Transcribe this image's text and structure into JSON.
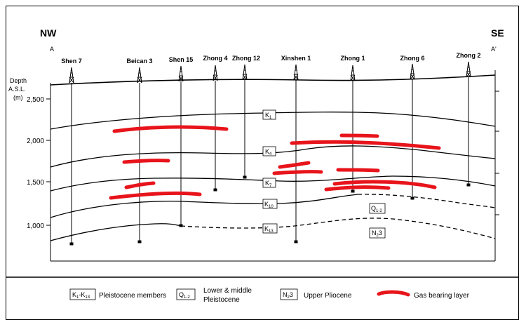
{
  "directions": {
    "left": "NW",
    "right": "SE"
  },
  "section_ends": {
    "left": "A",
    "right": "A'"
  },
  "y_axis": {
    "label_line1": "Depth",
    "label_line2": "A.S.L.",
    "label_line3": "(m)",
    "ticks": [
      "2,500",
      "2,000",
      "1,500",
      "1,000"
    ]
  },
  "wells": [
    "Shen 7",
    "Beican 3",
    "Shen 15",
    "Zhong 4",
    "Zhong 12",
    "Xinshen 1",
    "Zhong 1",
    "Zhong 6",
    "Zhong 2"
  ],
  "horizons": {
    "k1": {
      "letter": "K",
      "sub": "1"
    },
    "k4": {
      "letter": "K",
      "sub": "4"
    },
    "k7": {
      "letter": "K",
      "sub": "7"
    },
    "k10": {
      "letter": "K",
      "sub": "10"
    },
    "k13": {
      "letter": "K",
      "sub": "13"
    }
  },
  "units": {
    "q12": {
      "letter": "Q",
      "sub": "1-2"
    },
    "n23": {
      "letter": "N",
      "sub": "2",
      "suffix": "3"
    }
  },
  "legend": {
    "k_box": {
      "letter": "K",
      "sub1": "1",
      "dash": "-K",
      "sub2": "13"
    },
    "k_text": "Pleistocene members",
    "q_box": {
      "letter": "Q",
      "sub": "1-2"
    },
    "q_text_line1": "Lower & middle",
    "q_text_line2": "Pleistocene",
    "n_box": {
      "letter": "N",
      "sub": "2",
      "suffix": "3"
    },
    "n_text": "Upper Pliocene",
    "gas_text": "Gas bearing layer"
  },
  "colors": {
    "gas": "#e8141b",
    "line": "#000000"
  }
}
